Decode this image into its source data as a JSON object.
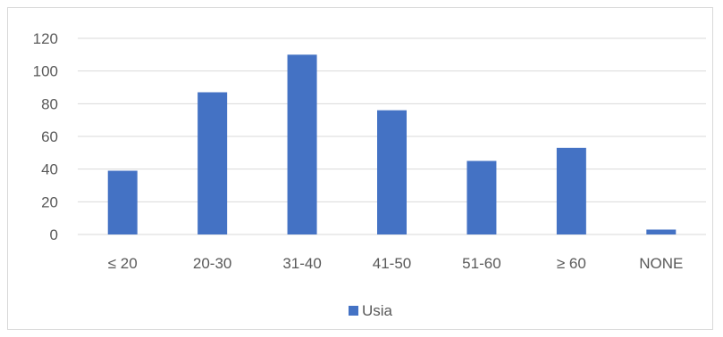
{
  "chart_data": {
    "type": "bar",
    "title": "",
    "xlabel": "",
    "ylabel": "",
    "categories": [
      "≤ 20",
      "20-30",
      "31-40",
      "41-50",
      "51-60",
      "≥ 60",
      "NONE"
    ],
    "series": [
      {
        "name": "Usia",
        "values": [
          39,
          87,
          110,
          76,
          45,
          53,
          3
        ],
        "color": "#4472C4"
      }
    ],
    "ylim": [
      0,
      120
    ],
    "yticks": [
      0,
      20,
      40,
      60,
      80,
      100,
      120
    ],
    "grid": true,
    "legend": "bottom"
  }
}
